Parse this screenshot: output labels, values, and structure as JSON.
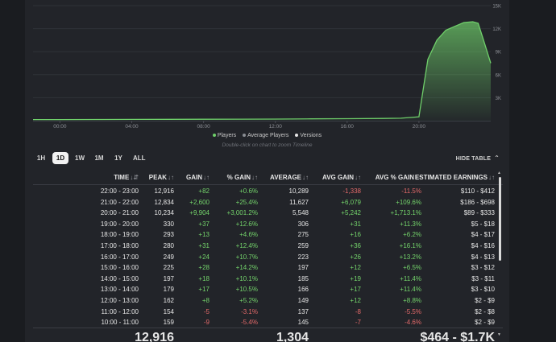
{
  "chart": {
    "y_ticks": [
      "15K",
      "12K",
      "9K",
      "6K",
      "3K"
    ],
    "x_ticks": [
      "00:00",
      "04:00",
      "08:00",
      "12:00",
      "16:00",
      "20:00"
    ],
    "line_color": "#6fcf6a",
    "legend": [
      {
        "label": "Players",
        "color": "#6fcf6a"
      },
      {
        "label": "Average Players",
        "color": "#8a8d93"
      },
      {
        "label": "Versions",
        "color": "#e6e6e6"
      }
    ],
    "hint": "Double-click on chart to zoom Timeline"
  },
  "chart_data": {
    "type": "area",
    "x_hours": [
      0,
      2,
      4,
      6,
      8,
      10,
      12,
      14,
      16,
      18,
      19,
      20,
      20.5,
      21,
      21.5,
      22,
      22.5,
      23,
      23.3,
      23.6,
      24
    ],
    "players": [
      150,
      160,
      170,
      175,
      185,
      195,
      210,
      240,
      260,
      290,
      330,
      500,
      8000,
      10500,
      11800,
      12300,
      12800,
      12900,
      12700,
      10500,
      7500
    ],
    "ylim": [
      0,
      15000
    ],
    "xlim": [
      -1.5,
      24
    ]
  },
  "ranges": [
    "1H",
    "1D",
    "1W",
    "1M",
    "1Y",
    "ALL"
  ],
  "active_range": "1D",
  "hide_table_label": "HIDE TABLE",
  "table": {
    "headers": [
      "TIME",
      "PEAK",
      "GAIN",
      "% GAIN",
      "AVERAGE",
      "AVG GAIN",
      "AVG % GAIN",
      "ESTIMATED EARNINGS"
    ],
    "sort_icons": [
      "↓⇵",
      "↓↑",
      "↓↑",
      "↓↑",
      "↓↑",
      "↓↑",
      "↓↑",
      "↓↑"
    ],
    "rows": [
      [
        "22:00 - 23:00",
        "12,916",
        "+82",
        "+0.6%",
        "10,289",
        "-1,338",
        "-11.5%",
        "$110 - $412"
      ],
      [
        "21:00 - 22:00",
        "12,834",
        "+2,600",
        "+25.4%",
        "11,627",
        "+6,079",
        "+109.6%",
        "$186 - $698"
      ],
      [
        "20:00 - 21:00",
        "10,234",
        "+9,904",
        "+3,001.2%",
        "5,548",
        "+5,242",
        "+1,713.1%",
        "$89 - $333"
      ],
      [
        "19:00 - 20:00",
        "330",
        "+37",
        "+12.6%",
        "306",
        "+31",
        "+11.3%",
        "$5 - $18"
      ],
      [
        "18:00 - 19:00",
        "293",
        "+13",
        "+4.6%",
        "275",
        "+16",
        "+6.2%",
        "$4 - $17"
      ],
      [
        "17:00 - 18:00",
        "280",
        "+31",
        "+12.4%",
        "259",
        "+36",
        "+16.1%",
        "$4 - $16"
      ],
      [
        "16:00 - 17:00",
        "249",
        "+24",
        "+10.7%",
        "223",
        "+26",
        "+13.2%",
        "$4 - $13"
      ],
      [
        "15:00 - 16:00",
        "225",
        "+28",
        "+14.2%",
        "197",
        "+12",
        "+6.5%",
        "$3 - $12"
      ],
      [
        "14:00 - 15:00",
        "197",
        "+18",
        "+10.1%",
        "185",
        "+19",
        "+11.4%",
        "$3 - $11"
      ],
      [
        "13:00 - 14:00",
        "179",
        "+17",
        "+10.5%",
        "166",
        "+17",
        "+11.4%",
        "$3 - $10"
      ],
      [
        "12:00 - 13:00",
        "162",
        "+8",
        "+5.2%",
        "149",
        "+12",
        "+8.8%",
        "$2 - $9"
      ],
      [
        "11:00 - 12:00",
        "154",
        "-5",
        "-3.1%",
        "137",
        "-8",
        "-5.5%",
        "$2 - $8"
      ],
      [
        "10:00 - 11:00",
        "159",
        "-9",
        "-5.4%",
        "145",
        "-7",
        "-4.6%",
        "$2 - $9"
      ]
    ],
    "footer": {
      "peak": "12,916",
      "average": "1,304",
      "earnings": "$464 - $1.7K"
    }
  }
}
